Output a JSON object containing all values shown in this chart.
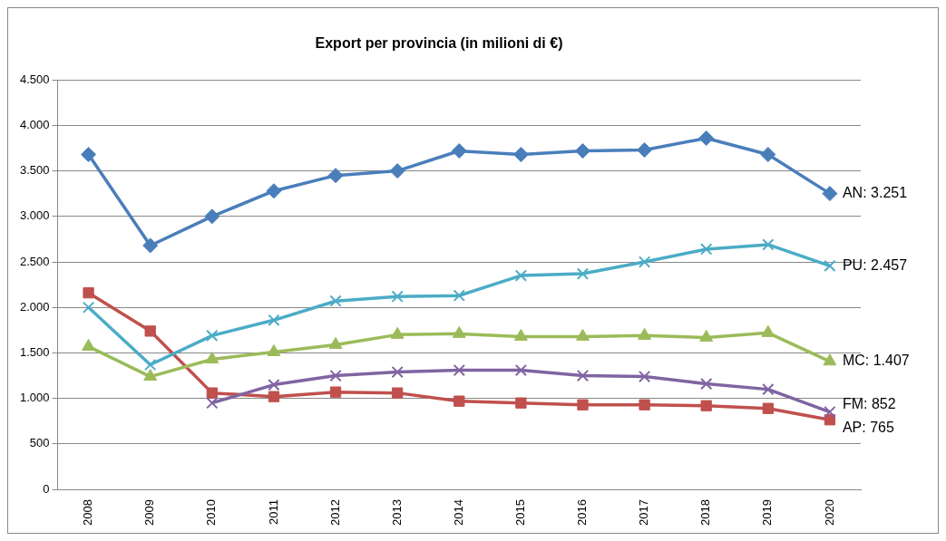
{
  "chart_data": {
    "type": "line",
    "title": "Export per provincia (in milioni di €)",
    "categories": [
      "2008",
      "2009",
      "2010",
      "2011",
      "2012",
      "2013",
      "2014",
      "2015",
      "2016",
      "2017",
      "2018",
      "2019",
      "2020"
    ],
    "series": [
      {
        "color": "#4a7ebb",
        "marker": "diamond",
        "values": [
          3680,
          2680,
          3000,
          3280,
          3450,
          3500,
          3720,
          3680,
          3720,
          3730,
          3860,
          3680,
          3251
        ]
      },
      {
        "color": "#4bacc6",
        "marker": "cross",
        "values": [
          2000,
          1370,
          1690,
          1860,
          2070,
          2120,
          2130,
          2350,
          2370,
          2500,
          2640,
          2690,
          2457
        ]
      },
      {
        "color": "#9bbb59",
        "marker": "triangle",
        "values": [
          1570,
          1240,
          1430,
          1510,
          1590,
          1700,
          1710,
          1680,
          1680,
          1690,
          1670,
          1720,
          1407
        ]
      },
      {
        "color": "#8064a2",
        "marker": "cross",
        "values": [
          null,
          null,
          950,
          1150,
          1250,
          1290,
          1310,
          1310,
          1250,
          1240,
          1160,
          1100,
          852
        ]
      },
      {
        "color": "#c0504d",
        "marker": "square",
        "values": [
          2160,
          1740,
          1060,
          1020,
          1070,
          1060,
          970,
          950,
          930,
          930,
          920,
          890,
          765
        ]
      }
    ],
    "ylim": [
      0,
      4500
    ],
    "yticks": [
      {
        "value": 0,
        "label": "0"
      },
      {
        "value": 500,
        "label": "500"
      },
      {
        "value": 1000,
        "label": "1.000"
      },
      {
        "value": 1500,
        "label": "1.500"
      },
      {
        "value": 2000,
        "label": "2.000"
      },
      {
        "value": 2500,
        "label": "2.500"
      },
      {
        "value": 3000,
        "label": "3.000"
      },
      {
        "value": 3500,
        "label": "3.500"
      },
      {
        "value": 4000,
        "label": "4.000"
      },
      {
        "value": 4500,
        "label": "4.500"
      }
    ],
    "grid": "y",
    "legend": false,
    "annotations": [
      {
        "text": "AN: 3.251",
        "x": "2020",
        "y": 3251
      },
      {
        "text": "PU: 2.457",
        "x": "2020",
        "y": 2457
      },
      {
        "text": "MC: 1.407",
        "x": "2020",
        "y": 1407
      },
      {
        "text": "FM: 852",
        "x": "2020",
        "y": 852
      },
      {
        "text": "AP: 765",
        "x": "2020",
        "y": 765
      }
    ]
  }
}
